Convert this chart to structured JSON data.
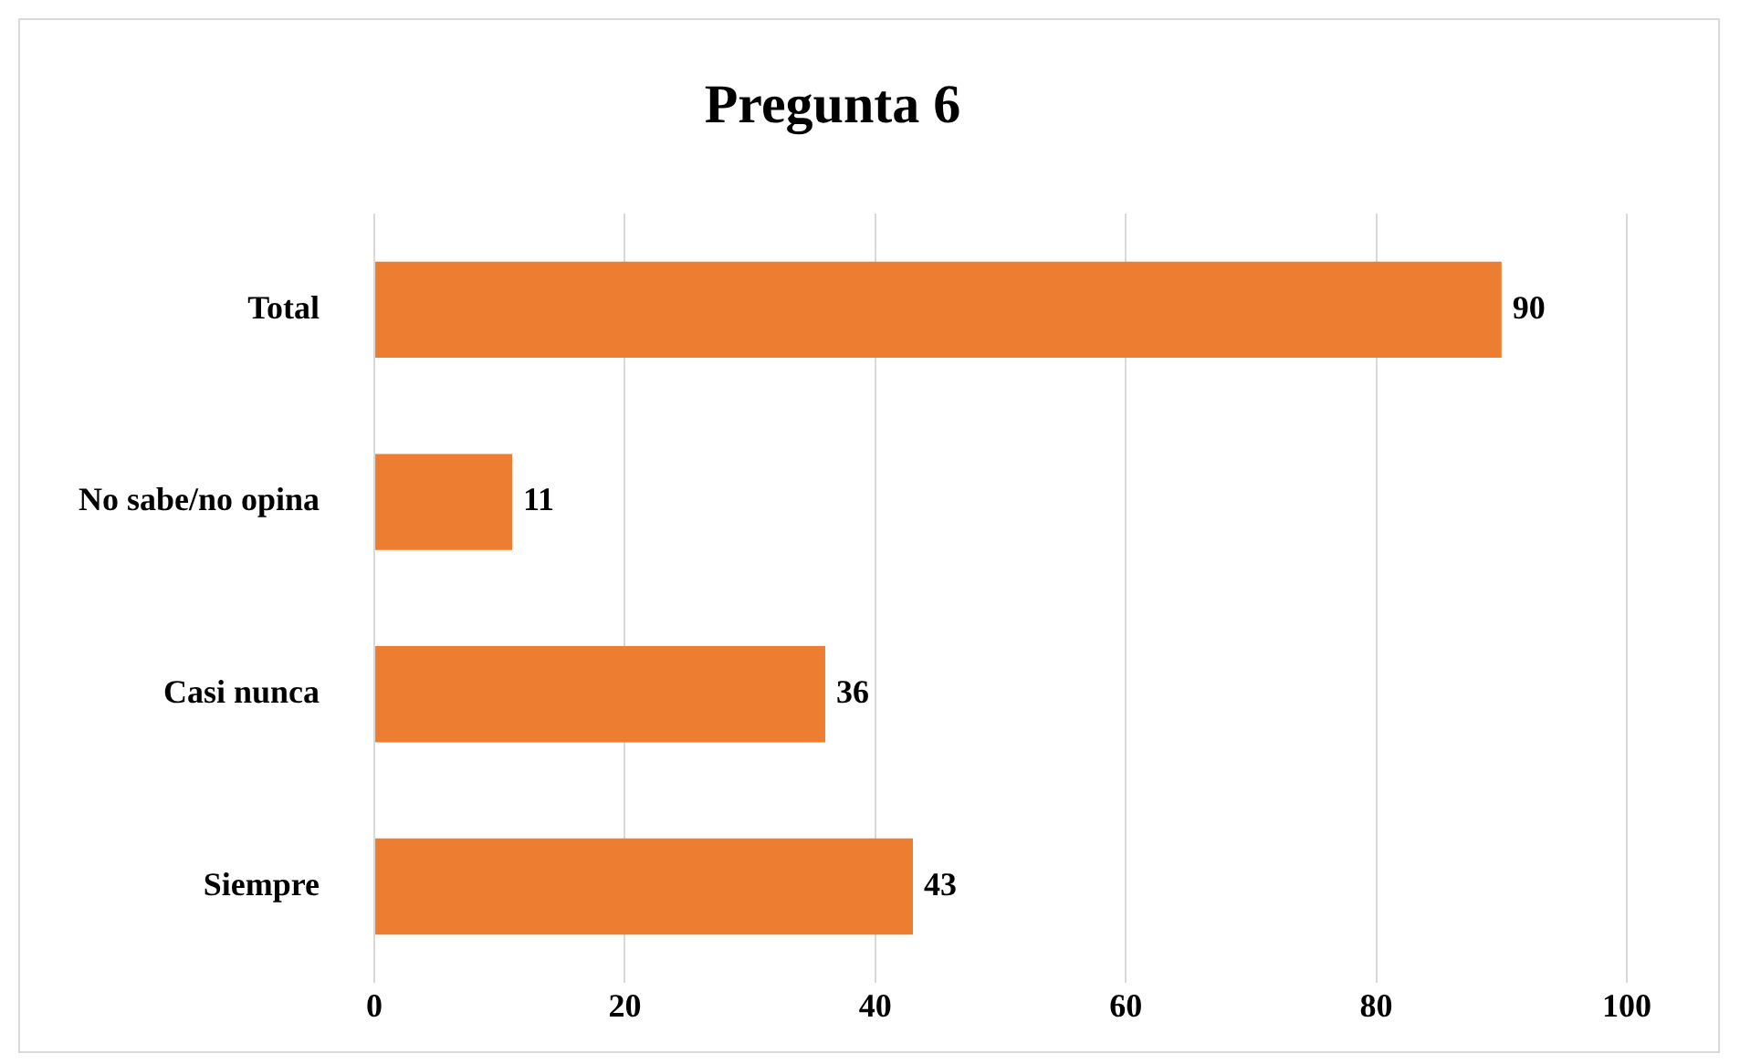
{
  "chart_data": {
    "type": "bar",
    "title": "Pregunta 6",
    "orientation": "horizontal",
    "categories": [
      "Total",
      "No sabe/no opina",
      "Casi nunca",
      "Siempre"
    ],
    "values": [
      90,
      11,
      36,
      43
    ],
    "color": "#ed7d31",
    "xlim": [
      0,
      100
    ],
    "xticks": [
      0,
      20,
      40,
      60,
      80,
      100
    ],
    "grid": "x",
    "legend": false,
    "data_labels": true
  }
}
